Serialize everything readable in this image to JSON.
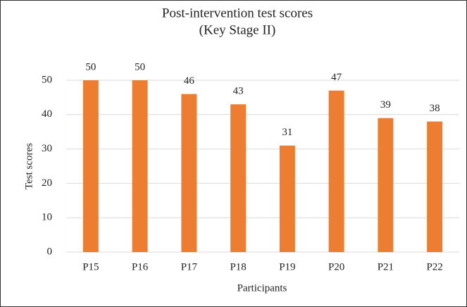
{
  "chart_data": {
    "type": "bar",
    "title": "Post-intervention test scores",
    "subtitle": "(Key Stage II)",
    "x_label": "Participants",
    "y_label": "Test scores",
    "categories": [
      "P15",
      "P16",
      "P17",
      "P18",
      "P19",
      "P20",
      "P21",
      "P22"
    ],
    "values": [
      50,
      50,
      46,
      43,
      31,
      47,
      39,
      38
    ],
    "color": "#ed7d31",
    "ylim": [
      0,
      50
    ],
    "yticks": [
      0,
      10,
      20,
      30,
      40,
      50
    ],
    "grid": true
  }
}
